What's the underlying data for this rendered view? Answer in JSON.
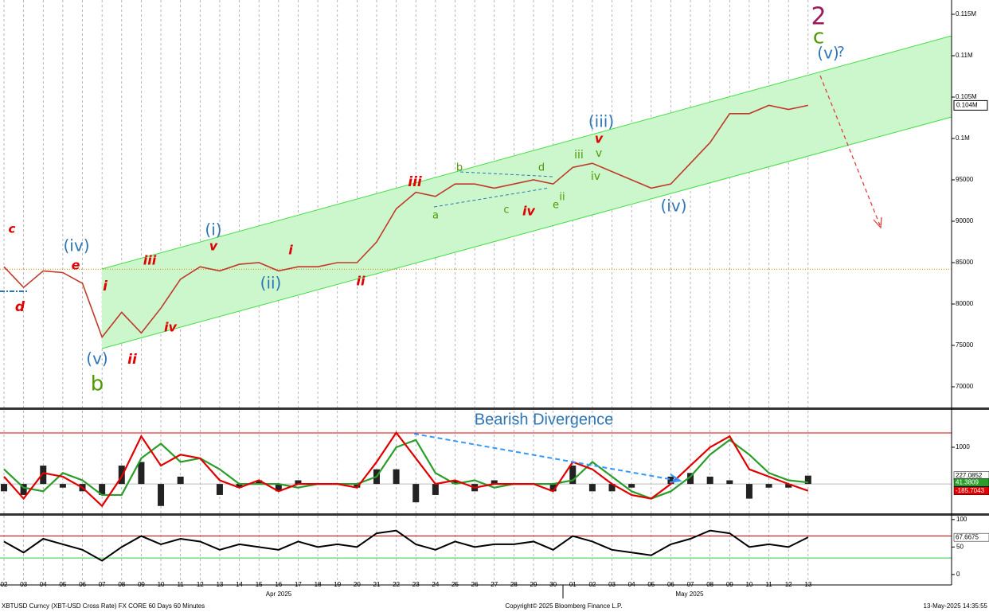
{
  "chart_data": [
    {
      "type": "line",
      "categories": [
        "02",
        "03",
        "04",
        "05",
        "06",
        "07",
        "08",
        "09",
        "10",
        "11",
        "12",
        "13",
        "14",
        "15",
        "16",
        "17",
        "18",
        "19",
        "20",
        "21",
        "22",
        "23",
        "24",
        "25",
        "26",
        "27",
        "28",
        "29",
        "30",
        "01",
        "02",
        "03",
        "04",
        "05",
        "06",
        "07",
        "08",
        "09",
        "10",
        "11",
        "12",
        "13"
      ],
      "month_labels": [
        "Apr 2025",
        "May 2025"
      ],
      "series": [
        {
          "name": "XBTUSD",
          "color": "#c0392b",
          "values": [
            84500,
            82000,
            84000,
            83800,
            82500,
            76000,
            79000,
            76500,
            79500,
            83000,
            84500,
            84000,
            84800,
            85000,
            84000,
            84500,
            84500,
            85000,
            85000,
            87500,
            91500,
            93500,
            93000,
            94500,
            94500,
            94000,
            94500,
            95000,
            94500,
            96500,
            97000,
            96000,
            95000,
            94000,
            94500,
            97000,
            99500,
            103000,
            103000,
            104000,
            103500,
            104000
          ],
          "value_labels": [
            null,
            null,
            null,
            null,
            null,
            null,
            null,
            null,
            null,
            null,
            null,
            null,
            null,
            null,
            null,
            null,
            null,
            null,
            null,
            null,
            null,
            null,
            null,
            null,
            null,
            null,
            null,
            null,
            null,
            null,
            null,
            null,
            null,
            null,
            null,
            null,
            null,
            null,
            null,
            null,
            null,
            "0.104M"
          ]
        }
      ],
      "ylim": [
        67500,
        116730
      ],
      "yticks": [
        70000,
        75000,
        80000,
        85000,
        90000,
        95000,
        {
          "value": 100000,
          "label": "0.1M"
        },
        {
          "value": 105000,
          "label": "0.105M"
        },
        {
          "value": 110000,
          "label": "0.11M"
        },
        {
          "value": 115000,
          "label": "0.115M"
        }
      ],
      "hline": 84200,
      "annotations": [
        {
          "text": "c",
          "color": "#e00000"
        },
        {
          "text": "d",
          "color": "#e00000"
        },
        {
          "text": "(iv)",
          "color": "#2e75b6"
        },
        {
          "text": "e",
          "color": "#e00000"
        },
        {
          "text": "i",
          "color": "#e00000"
        },
        {
          "text": "iii",
          "color": "#e00000"
        },
        {
          "text": "(v)",
          "color": "#2e75b6"
        },
        {
          "text": "b",
          "color": "#4e9a06"
        },
        {
          "text": "ii",
          "color": "#e00000"
        },
        {
          "text": "iv",
          "color": "#e00000"
        },
        {
          "text": "(i)",
          "color": "#2e75b6"
        },
        {
          "text": "v",
          "color": "#e00000"
        },
        {
          "text": "(ii)",
          "color": "#2e75b6"
        },
        {
          "text": "i",
          "color": "#e00000"
        },
        {
          "text": "ii",
          "color": "#e00000"
        },
        {
          "text": "iii",
          "color": "#e00000"
        },
        {
          "text": "b",
          "color": "#4e9a06"
        },
        {
          "text": "a",
          "color": "#4e9a06"
        },
        {
          "text": "c",
          "color": "#4e9a06"
        },
        {
          "text": "d",
          "color": "#4e9a06"
        },
        {
          "text": "iv",
          "color": "#e00000"
        },
        {
          "text": "e",
          "color": "#4e9a06"
        },
        {
          "text": "ii",
          "color": "#4e9a06"
        },
        {
          "text": "iii",
          "color": "#4e9a06"
        },
        {
          "text": "v",
          "color": "#4e9a06"
        },
        {
          "text": "iv",
          "color": "#4e9a06"
        },
        {
          "text": "(iii)",
          "color": "#2e75b6"
        },
        {
          "text": "v",
          "color": "#e00000"
        },
        {
          "text": "(iv)",
          "color": "#2e75b6"
        },
        {
          "text": "2",
          "color": "#9b1b5a"
        },
        {
          "text": "c",
          "color": "#4e9a06"
        },
        {
          "text": "(v)",
          "color": "#2e75b6"
        },
        {
          "text": "?",
          "color": "#2e75b6"
        }
      ]
    },
    {
      "type": "line",
      "title": "Bearish Divergence",
      "series": [
        {
          "name": "Signal",
          "color": "#2a9d2a",
          "values": [
            400,
            -100,
            -200,
            300,
            100,
            -300,
            -300,
            700,
            1100,
            600,
            700,
            400,
            0,
            0,
            0,
            -100,
            0,
            0,
            0,
            200,
            1000,
            1200,
            300,
            0,
            100,
            -100,
            0,
            0,
            0,
            100,
            600,
            200,
            -200,
            -400,
            -200,
            200,
            800,
            1200,
            800,
            300,
            100,
            41.3809
          ]
        },
        {
          "name": "MACD",
          "color": "#e00000",
          "values": [
            200,
            -400,
            300,
            200,
            -100,
            -600,
            200,
            1300,
            500,
            800,
            700,
            100,
            -100,
            100,
            -200,
            0,
            0,
            0,
            -100,
            600,
            1400,
            700,
            0,
            100,
            -100,
            0,
            0,
            0,
            -200,
            600,
            400,
            0,
            -300,
            -400,
            0,
            500,
            1000,
            1300,
            400,
            200,
            0,
            -185.7043
          ]
        }
      ],
      "histogram": [
        -200,
        -300,
        500,
        -100,
        -200,
        -300,
        500,
        600,
        -600,
        200,
        0,
        -300,
        -100,
        100,
        -200,
        100,
        0,
        0,
        -100,
        400,
        400,
        -500,
        -300,
        100,
        -200,
        100,
        0,
        0,
        -200,
        500,
        -200,
        -200,
        -100,
        0,
        200,
        300,
        200,
        100,
        -400,
        -100,
        -100,
        227.0852
      ],
      "ylim": [
        -800,
        2020
      ],
      "yticks": [
        1000
      ],
      "hline": 1390
    },
    {
      "type": "line",
      "series": [
        {
          "name": "RSI",
          "color": "#000000",
          "values": [
            60,
            40,
            65,
            55,
            45,
            25,
            50,
            70,
            55,
            65,
            60,
            45,
            55,
            50,
            45,
            60,
            50,
            55,
            50,
            75,
            80,
            55,
            45,
            60,
            50,
            55,
            55,
            60,
            45,
            70,
            60,
            45,
            40,
            35,
            55,
            65,
            80,
            75,
            50,
            55,
            50,
            67.6675
          ]
        }
      ],
      "ylim": [
        -19,
        107
      ],
      "yticks": [
        0,
        50,
        100
      ],
      "hlines": [
        {
          "value": 70,
          "color": "#e00000"
        },
        {
          "value": 30,
          "color": "#2ecc40"
        }
      ]
    }
  ],
  "footer": {
    "ticker": "XBTUSD Curncy (XBT-USD Cross Rate) FX CORE 60 Days 60 Minutes",
    "copyright": "Copyright© 2025 Bloomberg Finance L.P.",
    "timestamp": "13-May-2025 14:35:55"
  }
}
